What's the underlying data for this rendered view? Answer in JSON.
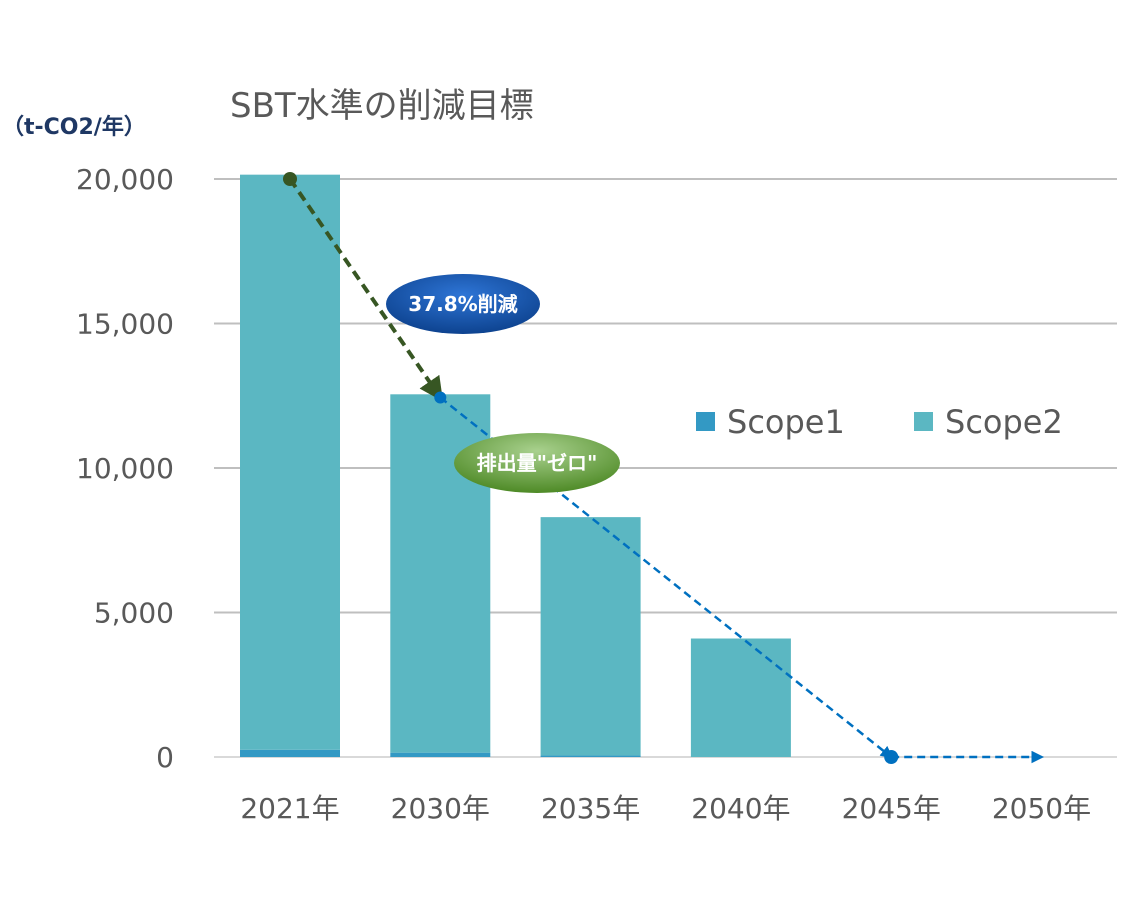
{
  "chart_data": {
    "type": "bar",
    "stacked": true,
    "title": "SBT水準の削減目標",
    "unit_label": "（t-CO2/年）",
    "categories": [
      "2021年",
      "2030年",
      "2035年",
      "2040年",
      "2045年",
      "2050年"
    ],
    "series": [
      {
        "name": "Scope1",
        "color": "#3399c4",
        "values": [
          250,
          150,
          50,
          0,
          0,
          0
        ]
      },
      {
        "name": "Scope2",
        "color": "#5bb7c2",
        "values": [
          19900,
          12400,
          8250,
          4100,
          0,
          0
        ]
      }
    ],
    "ylim": [
      0,
      20000
    ],
    "yticks": [
      {
        "value": 0,
        "label": "0"
      },
      {
        "value": 5000,
        "label": "5,000"
      },
      {
        "value": 10000,
        "label": "10,000"
      },
      {
        "value": 15000,
        "label": "15,000"
      },
      {
        "value": 20000,
        "label": "20,000"
      }
    ],
    "grid": true,
    "legend_position": "right",
    "trend_lines": [
      {
        "color": "#375623",
        "style": "dashed",
        "from": {
          "x": "2021年",
          "y": 20000
        },
        "to": {
          "x": "2030年",
          "y": 12440
        }
      },
      {
        "color": "#0070c0",
        "style": "dashed",
        "from": {
          "x": "2030年",
          "y": 12440
        },
        "to": {
          "x": "2045年",
          "y": 0
        }
      },
      {
        "color": "#0070c0",
        "style": "dashed",
        "from": {
          "x": "2045年",
          "y": 0
        },
        "to": {
          "x": "2050年",
          "y": 0
        }
      }
    ],
    "annotations": [
      {
        "text": "37.8%削減",
        "color_from": "#2e75d6",
        "color_to": "#0b3f8a"
      },
      {
        "text": "排出量\"ゼロ\"",
        "color_from": "#a9d18e",
        "color_to": "#4e8a26"
      }
    ]
  }
}
